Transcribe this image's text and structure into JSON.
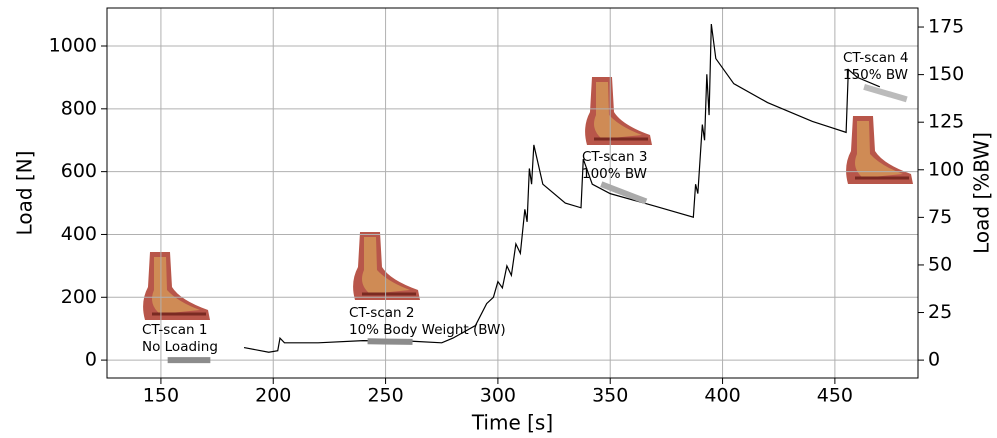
{
  "chart_data": {
    "type": "line",
    "x_label": "Time [s]",
    "y_label": "Load [N]",
    "y2_label": "Load [%BW]",
    "xlim": [
      126,
      487
    ],
    "ylim": [
      -57,
      1121
    ],
    "y2lim": [
      -9.4,
      185
    ],
    "xticks": [
      150,
      200,
      250,
      300,
      350,
      400,
      450
    ],
    "yticks": [
      0,
      200,
      400,
      600,
      800,
      1000
    ],
    "y2ticks": [
      0,
      25,
      50,
      75,
      100,
      125,
      150,
      175
    ],
    "grid": true,
    "series": [
      {
        "color": "#000000",
        "x": [
          187,
          198,
          202,
          203,
          205,
          220,
          240,
          262,
          275,
          280,
          290,
          295,
          298,
          300,
          302,
          304,
          306,
          308,
          310,
          312,
          313,
          314,
          315,
          316,
          320,
          330,
          337,
          338,
          342,
          350,
          370,
          387,
          388,
          389,
          391,
          392,
          393,
          394,
          395,
          397,
          405,
          420,
          440,
          455,
          456,
          460,
          470
        ],
        "values": [
          40,
          25,
          30,
          70,
          55,
          55,
          62,
          60,
          55,
          70,
          110,
          180,
          200,
          250,
          230,
          300,
          270,
          370,
          340,
          480,
          440,
          610,
          560,
          685,
          560,
          500,
          485,
          640,
          560,
          530,
          490,
          455,
          560,
          530,
          750,
          700,
          910,
          780,
          1070,
          960,
          880,
          820,
          760,
          725,
          925,
          900,
          870
        ]
      },
      {
        "color": "#8c8c8c",
        "x": [
          153,
          172
        ],
        "values": [
          0,
          0
        ]
      },
      {
        "color": "#8c8c8c",
        "x": [
          242,
          262
        ],
        "values": [
          60,
          58
        ]
      },
      {
        "color": "#aaaaaa",
        "x": [
          346,
          366
        ],
        "values": [
          560,
          505
        ]
      },
      {
        "color": "#bbbbbb",
        "x": [
          463,
          482
        ],
        "values": [
          870,
          830
        ]
      }
    ],
    "annotations": [
      {
        "text": [
          "CT-scan 1",
          "No Loading"
        ]
      },
      {
        "text": [
          "CT-scan 2",
          "10% Body Weight (BW)"
        ]
      },
      {
        "text": [
          "CT-scan 3",
          "100% BW"
        ]
      },
      {
        "text": [
          "CT-scan 4",
          "150% BW"
        ]
      }
    ]
  }
}
